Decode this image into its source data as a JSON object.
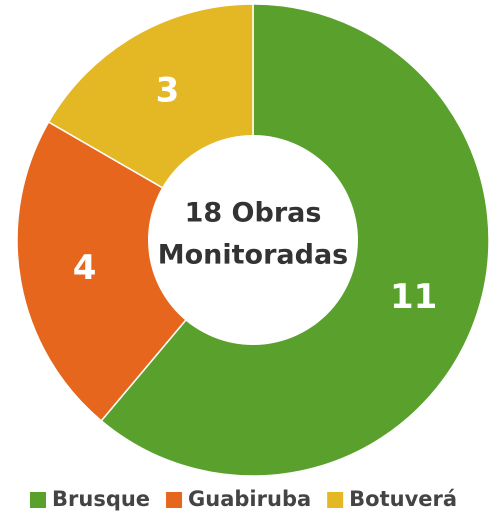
{
  "chart_data": {
    "type": "pie",
    "center_text": [
      "18 Obras",
      "Monitoradas"
    ],
    "categories": [
      "Brusque",
      "Guabiruba",
      "Botuverá"
    ],
    "values": [
      11,
      4,
      3
    ],
    "colors": [
      "#5aa02c",
      "#e5661c",
      "#e4b824"
    ],
    "legend": "bottom"
  }
}
